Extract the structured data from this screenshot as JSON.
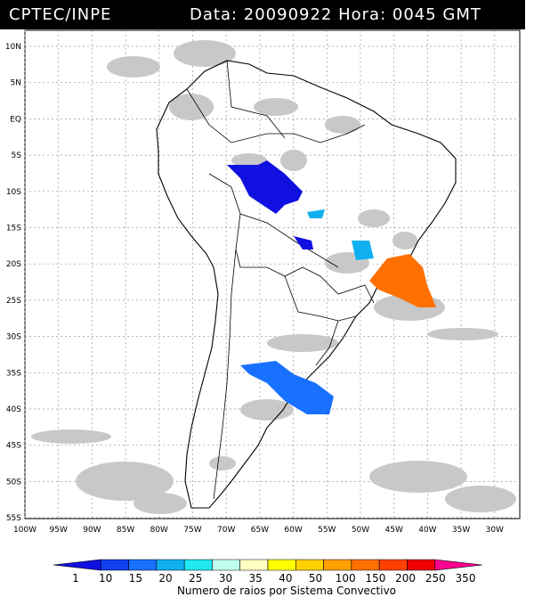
{
  "header": {
    "source": "CPTEC/INPE",
    "datetime": "Data: 20090922 Hora: 0045 GMT"
  },
  "map": {
    "lat_labels": [
      "10N",
      "5N",
      "EQ",
      "5S",
      "10S",
      "15S",
      "20S",
      "25S",
      "30S",
      "35S",
      "40S",
      "45S",
      "50S",
      "55S"
    ],
    "lon_labels": [
      "100W",
      "95W",
      "90W",
      "85W",
      "80W",
      "75W",
      "70W",
      "65W",
      "60W",
      "55W",
      "50W",
      "45W",
      "40W",
      "35W",
      "30W"
    ]
  },
  "colorbar": {
    "ticks": [
      "1",
      "10",
      "15",
      "20",
      "25",
      "30",
      "35",
      "40",
      "50",
      "100",
      "150",
      "200",
      "250",
      "350"
    ],
    "colors": [
      "#1010e0",
      "#1040f0",
      "#1870ff",
      "#10b0f0",
      "#20e8f0",
      "#c0fff0",
      "#ffffc0",
      "#ffff00",
      "#ffd000",
      "#ffa000",
      "#ff7000",
      "#ff4000",
      "#f00000",
      "#ff0090"
    ],
    "caption": "Numero de raios por Sistema Convectivo"
  }
}
